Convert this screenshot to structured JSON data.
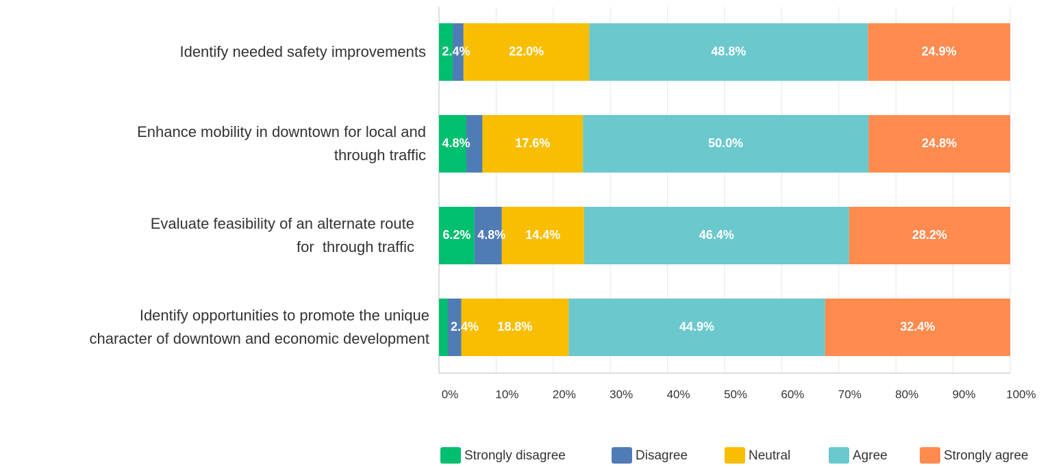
{
  "chart_data": {
    "type": "stacked-bar-horizontal",
    "categories": [
      "Identify needed safety improvements",
      "Enhance mobility in downtown for local and\nthrough traffic",
      "Evaluate feasibility of an alternate route\nfor  through traffic",
      "Identify opportunities to promote the unique\ncharacter of downtown and economic development"
    ],
    "series": [
      {
        "name": "Strongly disagree",
        "color": "#00bf6f",
        "values": [
          2.4,
          4.8,
          6.2,
          1.5
        ],
        "value_labels": [
          "2.4%",
          "4.8%",
          "6.2%",
          null
        ]
      },
      {
        "name": "Disagree",
        "color": "#507cb6",
        "values": [
          1.9,
          2.8,
          4.8,
          2.4
        ],
        "value_labels": [
          null,
          null,
          "4.8%",
          "2.4%"
        ]
      },
      {
        "name": "Neutral",
        "color": "#f9be00",
        "values": [
          22.0,
          17.6,
          14.4,
          18.8
        ],
        "value_labels": [
          "22.0%",
          "17.6%",
          "14.4%",
          "18.8%"
        ]
      },
      {
        "name": "Agree",
        "color": "#6bc8cd",
        "values": [
          48.8,
          50.0,
          46.4,
          44.9
        ],
        "value_labels": [
          "48.8%",
          "50.0%",
          "46.4%",
          "44.9%"
        ]
      },
      {
        "name": "Strongly agree",
        "color": "#ff8b4f",
        "values": [
          24.9,
          24.8,
          28.2,
          32.4
        ],
        "value_labels": [
          "24.9%",
          "24.8%",
          "28.2%",
          "32.4%"
        ]
      }
    ],
    "xlim": [
      0,
      100
    ],
    "xticks": [
      {
        "value": 0,
        "label": "0%"
      },
      {
        "value": 10,
        "label": "10%"
      },
      {
        "value": 20,
        "label": "20%"
      },
      {
        "value": 30,
        "label": "30%"
      },
      {
        "value": 40,
        "label": "40%"
      },
      {
        "value": 50,
        "label": "50%"
      },
      {
        "value": 60,
        "label": "60%"
      },
      {
        "value": 70,
        "label": "70%"
      },
      {
        "value": 80,
        "label": "80%"
      },
      {
        "value": 90,
        "label": "90%"
      },
      {
        "value": 100,
        "label": "100%"
      }
    ],
    "grid": true,
    "legend": "bottom"
  }
}
